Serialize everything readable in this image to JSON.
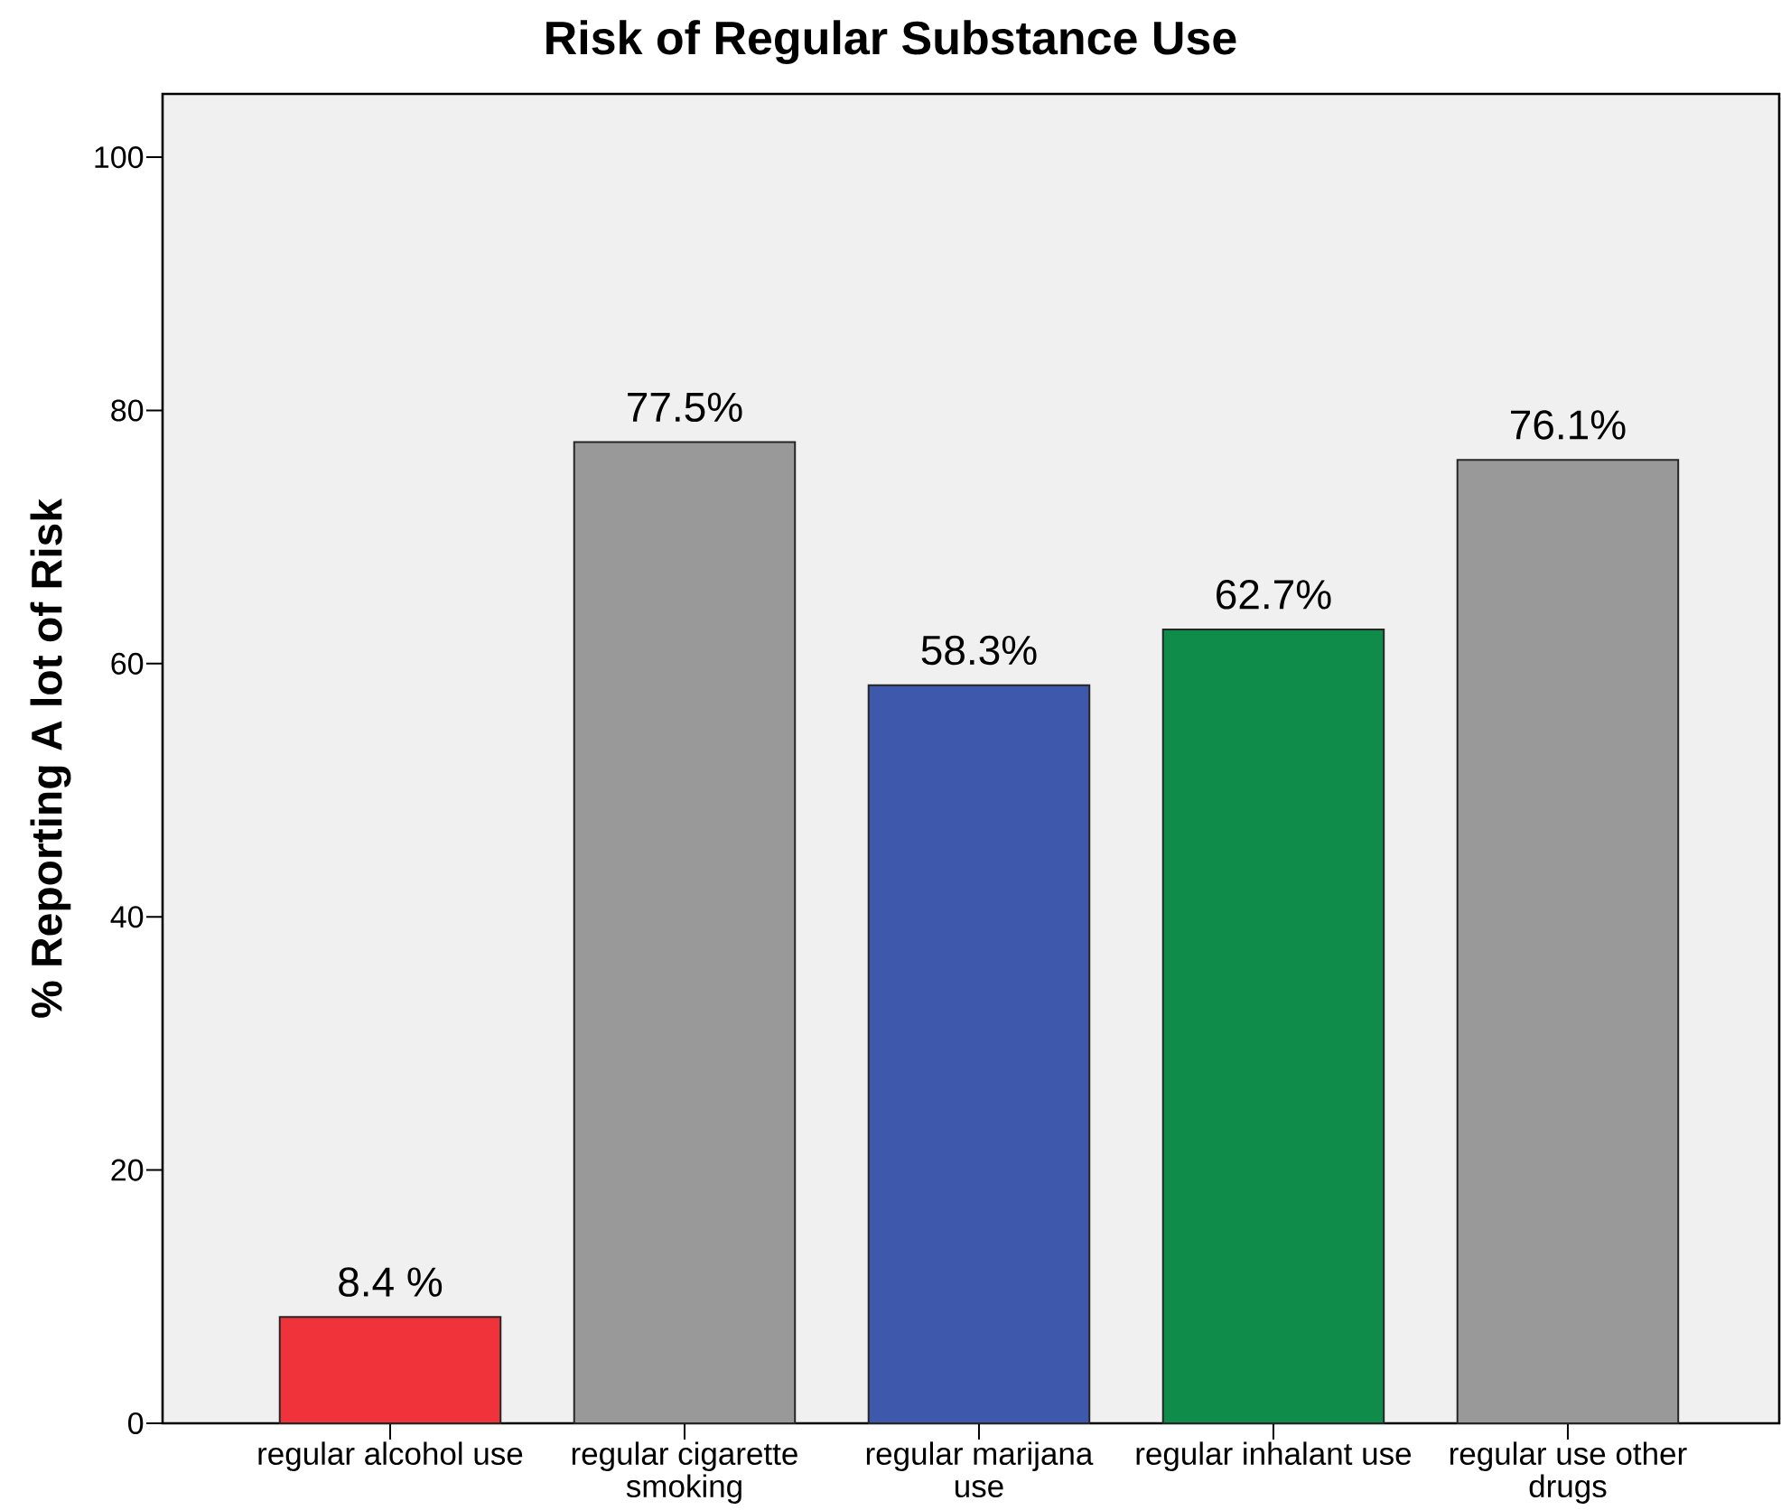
{
  "chart_data": {
    "type": "bar",
    "title": "Risk of Regular Substance Use",
    "ylabel": "% Reporting A lot of Risk",
    "categories": [
      "regular alcohol use",
      "regular cigarette smoking",
      "regular marijana use",
      "regular inhalant use",
      "regular use other drugs"
    ],
    "values": [
      8.4,
      77.5,
      58.3,
      62.7,
      76.1
    ],
    "value_labels": [
      "8.4 %",
      "77.5%",
      "58.3%",
      "62.7%",
      "76.1%"
    ],
    "colors": [
      "#f0333a",
      "#999999",
      "#3e58ab",
      "#0f8c4a",
      "#999999"
    ],
    "ylim": [
      0,
      105
    ],
    "yticks": [
      0,
      20,
      40,
      60,
      80,
      100
    ]
  }
}
